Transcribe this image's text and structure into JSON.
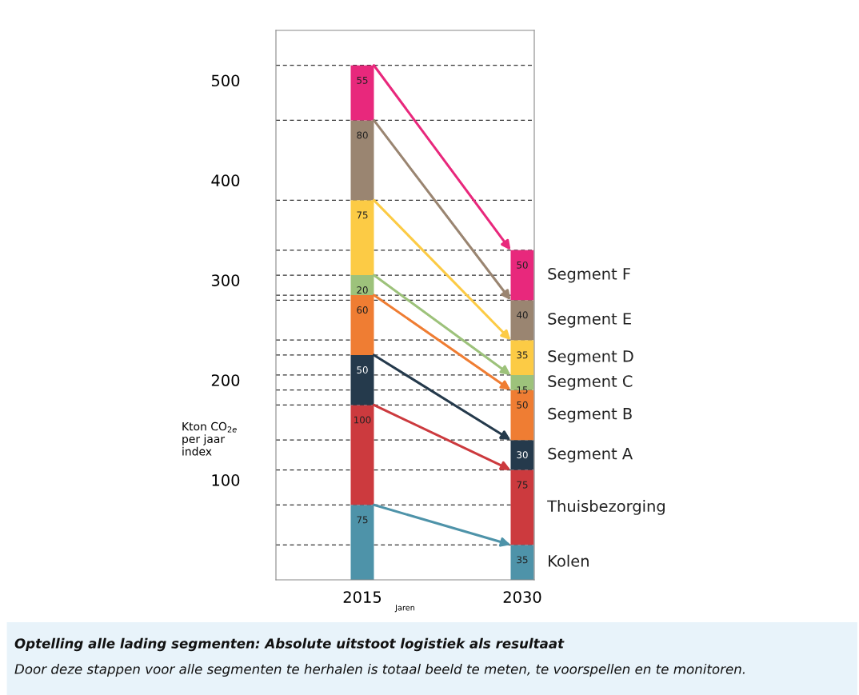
{
  "chart_data": {
    "type": "bar",
    "stacked": true,
    "categories": [
      "2015",
      "2030"
    ],
    "xlabel": "Jaren",
    "ylabel": "Kton CO$_{2e}$\nper jaar\nindex",
    "ylim": [
      0,
      550
    ],
    "yticks": [
      100,
      200,
      300,
      400,
      500
    ],
    "grid": false,
    "legend": false,
    "data_labels": true,
    "series": [
      {
        "name": "Kolen",
        "color": "#4e93a9",
        "values": [
          75,
          35
        ]
      },
      {
        "name": "Thuisbezorging",
        "color": "#cc3a3e",
        "values": [
          100,
          75
        ]
      },
      {
        "name": "Segment A",
        "color": "#253a4c",
        "values": [
          50,
          30
        ]
      },
      {
        "name": "Segment B",
        "color": "#ef7d33",
        "values": [
          60,
          50
        ]
      },
      {
        "name": "Segment C",
        "color": "#9dc27b",
        "values": [
          20,
          15
        ]
      },
      {
        "name": "Segment D",
        "color": "#fccb45",
        "values": [
          75,
          35
        ]
      },
      {
        "name": "Segment E",
        "color": "#9a8571",
        "values": [
          80,
          40
        ]
      },
      {
        "name": "Segment F",
        "color": "#e8287c",
        "values": [
          55,
          50
        ]
      }
    ],
    "ref_lines": [
      {
        "axis": "y",
        "value": 35,
        "color": "#333333",
        "line_style": "dashed"
      },
      {
        "axis": "y",
        "value": 75,
        "color": "#333333",
        "line_style": "dashed"
      },
      {
        "axis": "y",
        "value": 110,
        "color": "#333333",
        "line_style": "dashed"
      },
      {
        "axis": "y",
        "value": 140,
        "color": "#333333",
        "line_style": "dashed"
      },
      {
        "axis": "y",
        "value": 175,
        "color": "#333333",
        "line_style": "dashed"
      },
      {
        "axis": "y",
        "value": 190,
        "color": "#333333",
        "line_style": "dashed"
      },
      {
        "axis": "y",
        "value": 205,
        "color": "#333333",
        "line_style": "dashed"
      },
      {
        "axis": "y",
        "value": 225,
        "color": "#333333",
        "line_style": "dashed"
      },
      {
        "axis": "y",
        "value": 240,
        "color": "#333333",
        "line_style": "dashed"
      },
      {
        "axis": "y",
        "value": 280,
        "color": "#333333",
        "line_style": "dashed"
      },
      {
        "axis": "y",
        "value": 285,
        "color": "#333333",
        "line_style": "dashed"
      },
      {
        "axis": "y",
        "value": 305,
        "color": "#333333",
        "line_style": "dashed"
      },
      {
        "axis": "y",
        "value": 330,
        "color": "#333333",
        "line_style": "dashed"
      },
      {
        "axis": "y",
        "value": 380,
        "color": "#333333",
        "line_style": "dashed"
      },
      {
        "axis": "y",
        "value": 460,
        "color": "#333333",
        "line_style": "dashed"
      },
      {
        "axis": "y",
        "value": 515,
        "color": "#333333",
        "line_style": "dashed"
      }
    ],
    "annotations": [
      "Optelling alle lading segmenten: Absolute uitstoot logistiek als resultaat",
      "Door deze stappen voor alle segmenten te herhalen is totaal beeld te meten, te voorspellen en te monitoren."
    ]
  }
}
